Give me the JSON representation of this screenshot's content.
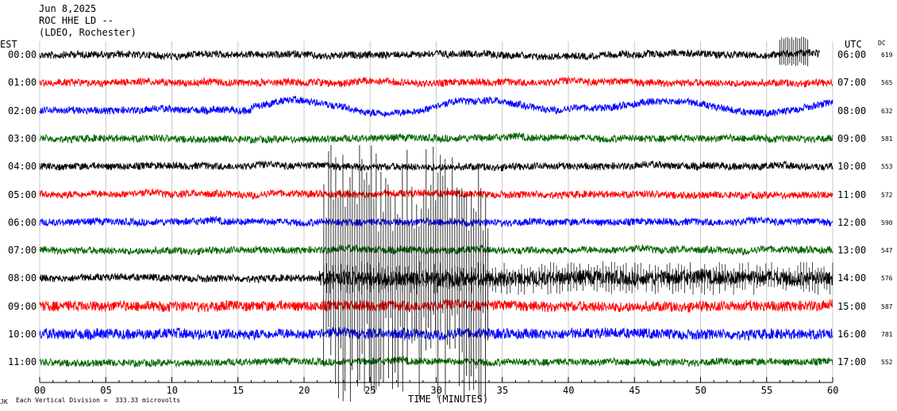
{
  "header": {
    "date": "Jun 8,2025",
    "station": "ROC HHE LD --",
    "network": "(LDEO, Rochester)"
  },
  "axes": {
    "left_zone": "EST",
    "right_zone": "UTC",
    "dc_label": "DC",
    "xlabel": "TIME (MINUTES)",
    "footer": "Each Vertical Division =  333.33 microvolts",
    "corner_mark": "JK"
  },
  "chart_data": {
    "type": "line",
    "title": "",
    "xlabel": "TIME (MINUTES)",
    "xlim": [
      0,
      60
    ],
    "x_ticks": [
      "00",
      "05",
      "10",
      "15",
      "20",
      "25",
      "30",
      "35",
      "40",
      "45",
      "50",
      "55",
      "60"
    ],
    "grid": true,
    "colors": [
      "#000000",
      "#ff0000",
      "#0000ff",
      "#006400"
    ],
    "rows": [
      {
        "est": "00:00",
        "utc": "06:00",
        "dc": "619",
        "color": "#000000",
        "end_min": 59
      },
      {
        "est": "01:00",
        "utc": "07:00",
        "dc": "565",
        "color": "#ff0000",
        "end_min": 60
      },
      {
        "est": "02:00",
        "utc": "08:00",
        "dc": "632",
        "color": "#0000ff",
        "end_min": 60
      },
      {
        "est": "03:00",
        "utc": "09:00",
        "dc": "581",
        "color": "#006400",
        "end_min": 60
      },
      {
        "est": "04:00",
        "utc": "10:00",
        "dc": "553",
        "color": "#000000",
        "end_min": 60
      },
      {
        "est": "05:00",
        "utc": "11:00",
        "dc": "572",
        "color": "#ff0000",
        "end_min": 60
      },
      {
        "est": "06:00",
        "utc": "12:00",
        "dc": "590",
        "color": "#0000ff",
        "end_min": 60
      },
      {
        "est": "07:00",
        "utc": "13:00",
        "dc": "547",
        "color": "#006400",
        "end_min": 60
      },
      {
        "est": "08:00",
        "utc": "14:00",
        "dc": "576",
        "color": "#000000",
        "end_min": 60
      },
      {
        "est": "09:00",
        "utc": "15:00",
        "dc": "587",
        "color": "#ff0000",
        "end_min": 60
      },
      {
        "est": "10:00",
        "utc": "16:00",
        "dc": "781",
        "color": "#0000ff",
        "end_min": 60
      },
      {
        "est": "11:00",
        "utc": "17:00",
        "dc": "552",
        "color": "#006400",
        "end_min": 60
      }
    ]
  }
}
